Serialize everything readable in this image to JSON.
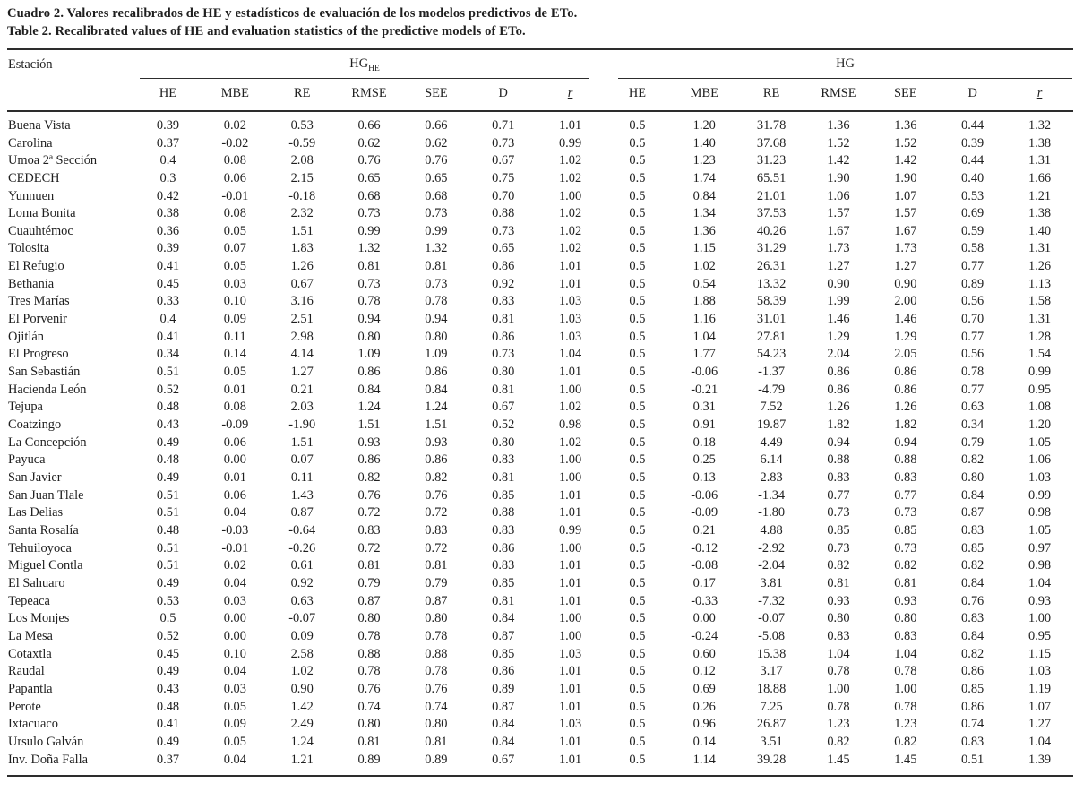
{
  "title_es": "Cuadro 2. Valores recalibrados de HE y estadísticos de evaluación de los modelos predictivos de ETo.",
  "title_en": "Table 2. Recalibrated values of HE and evaluation statistics of the predictive models of ETo.",
  "table": {
    "station_header": "Estación",
    "underlined_column": "r",
    "groups": [
      {
        "label": "HG",
        "subscript": "HE",
        "columns": [
          "HE",
          "MBE",
          "RE",
          "RMSE",
          "SEE",
          "D",
          "r"
        ]
      },
      {
        "label": "HG",
        "subscript": "",
        "columns": [
          "HE",
          "MBE",
          "RE",
          "RMSE",
          "SEE",
          "D",
          "r"
        ]
      }
    ],
    "rows": [
      {
        "station": "Buena Vista",
        "hg_he": [
          "0.39",
          "0.02",
          "0.53",
          "0.66",
          "0.66",
          "0.71",
          "1.01"
        ],
        "hg": [
          "0.5",
          "1.20",
          "31.78",
          "1.36",
          "1.36",
          "0.44",
          "1.32"
        ]
      },
      {
        "station": "Carolina",
        "hg_he": [
          "0.37",
          "-0.02",
          "-0.59",
          "0.62",
          "0.62",
          "0.73",
          "0.99"
        ],
        "hg": [
          "0.5",
          "1.40",
          "37.68",
          "1.52",
          "1.52",
          "0.39",
          "1.38"
        ]
      },
      {
        "station": "Umoa 2ª Sección",
        "hg_he": [
          "0.4",
          "0.08",
          "2.08",
          "0.76",
          "0.76",
          "0.67",
          "1.02"
        ],
        "hg": [
          "0.5",
          "1.23",
          "31.23",
          "1.42",
          "1.42",
          "0.44",
          "1.31"
        ]
      },
      {
        "station": "CEDECH",
        "hg_he": [
          "0.3",
          "0.06",
          "2.15",
          "0.65",
          "0.65",
          "0.75",
          "1.02"
        ],
        "hg": [
          "0.5",
          "1.74",
          "65.51",
          "1.90",
          "1.90",
          "0.40",
          "1.66"
        ]
      },
      {
        "station": "Yunnuen",
        "hg_he": [
          "0.42",
          "-0.01",
          "-0.18",
          "0.68",
          "0.68",
          "0.70",
          "1.00"
        ],
        "hg": [
          "0.5",
          "0.84",
          "21.01",
          "1.06",
          "1.07",
          "0.53",
          "1.21"
        ]
      },
      {
        "station": "Loma Bonita",
        "hg_he": [
          "0.38",
          "0.08",
          "2.32",
          "0.73",
          "0.73",
          "0.88",
          "1.02"
        ],
        "hg": [
          "0.5",
          "1.34",
          "37.53",
          "1.57",
          "1.57",
          "0.69",
          "1.38"
        ]
      },
      {
        "station": "Cuauhtémoc",
        "hg_he": [
          "0.36",
          "0.05",
          "1.51",
          "0.99",
          "0.99",
          "0.73",
          "1.02"
        ],
        "hg": [
          "0.5",
          "1.36",
          "40.26",
          "1.67",
          "1.67",
          "0.59",
          "1.40"
        ]
      },
      {
        "station": "Tolosita",
        "hg_he": [
          "0.39",
          "0.07",
          "1.83",
          "1.32",
          "1.32",
          "0.65",
          "1.02"
        ],
        "hg": [
          "0.5",
          "1.15",
          "31.29",
          "1.73",
          "1.73",
          "0.58",
          "1.31"
        ]
      },
      {
        "station": "El Refugio",
        "hg_he": [
          "0.41",
          "0.05",
          "1.26",
          "0.81",
          "0.81",
          "0.86",
          "1.01"
        ],
        "hg": [
          "0.5",
          "1.02",
          "26.31",
          "1.27",
          "1.27",
          "0.77",
          "1.26"
        ]
      },
      {
        "station": "Bethania",
        "hg_he": [
          "0.45",
          "0.03",
          "0.67",
          "0.73",
          "0.73",
          "0.92",
          "1.01"
        ],
        "hg": [
          "0.5",
          "0.54",
          "13.32",
          "0.90",
          "0.90",
          "0.89",
          "1.13"
        ]
      },
      {
        "station": "Tres Marías",
        "hg_he": [
          "0.33",
          "0.10",
          "3.16",
          "0.78",
          "0.78",
          "0.83",
          "1.03"
        ],
        "hg": [
          "0.5",
          "1.88",
          "58.39",
          "1.99",
          "2.00",
          "0.56",
          "1.58"
        ]
      },
      {
        "station": "El Porvenir",
        "hg_he": [
          "0.4",
          "0.09",
          "2.51",
          "0.94",
          "0.94",
          "0.81",
          "1.03"
        ],
        "hg": [
          "0.5",
          "1.16",
          "31.01",
          "1.46",
          "1.46",
          "0.70",
          "1.31"
        ]
      },
      {
        "station": "Ojitlán",
        "hg_he": [
          "0.41",
          "0.11",
          "2.98",
          "0.80",
          "0.80",
          "0.86",
          "1.03"
        ],
        "hg": [
          "0.5",
          "1.04",
          "27.81",
          "1.29",
          "1.29",
          "0.77",
          "1.28"
        ]
      },
      {
        "station": "El Progreso",
        "hg_he": [
          "0.34",
          "0.14",
          "4.14",
          "1.09",
          "1.09",
          "0.73",
          "1.04"
        ],
        "hg": [
          "0.5",
          "1.77",
          "54.23",
          "2.04",
          "2.05",
          "0.56",
          "1.54"
        ]
      },
      {
        "station": "San Sebastián",
        "hg_he": [
          "0.51",
          "0.05",
          "1.27",
          "0.86",
          "0.86",
          "0.80",
          "1.01"
        ],
        "hg": [
          "0.5",
          "-0.06",
          "-1.37",
          "0.86",
          "0.86",
          "0.78",
          "0.99"
        ]
      },
      {
        "station": "Hacienda León",
        "hg_he": [
          "0.52",
          "0.01",
          "0.21",
          "0.84",
          "0.84",
          "0.81",
          "1.00"
        ],
        "hg": [
          "0.5",
          "-0.21",
          "-4.79",
          "0.86",
          "0.86",
          "0.77",
          "0.95"
        ]
      },
      {
        "station": "Tejupa",
        "hg_he": [
          "0.48",
          "0.08",
          "2.03",
          "1.24",
          "1.24",
          "0.67",
          "1.02"
        ],
        "hg": [
          "0.5",
          "0.31",
          "7.52",
          "1.26",
          "1.26",
          "0.63",
          "1.08"
        ]
      },
      {
        "station": "Coatzingo",
        "hg_he": [
          "0.43",
          "-0.09",
          "-1.90",
          "1.51",
          "1.51",
          "0.52",
          "0.98"
        ],
        "hg": [
          "0.5",
          "0.91",
          "19.87",
          "1.82",
          "1.82",
          "0.34",
          "1.20"
        ]
      },
      {
        "station": "La Concepción",
        "hg_he": [
          "0.49",
          "0.06",
          "1.51",
          "0.93",
          "0.93",
          "0.80",
          "1.02"
        ],
        "hg": [
          "0.5",
          "0.18",
          "4.49",
          "0.94",
          "0.94",
          "0.79",
          "1.05"
        ]
      },
      {
        "station": "Payuca",
        "hg_he": [
          "0.48",
          "0.00",
          "0.07",
          "0.86",
          "0.86",
          "0.83",
          "1.00"
        ],
        "hg": [
          "0.5",
          "0.25",
          "6.14",
          "0.88",
          "0.88",
          "0.82",
          "1.06"
        ]
      },
      {
        "station": "San Javier",
        "hg_he": [
          "0.49",
          "0.01",
          "0.11",
          "0.82",
          "0.82",
          "0.81",
          "1.00"
        ],
        "hg": [
          "0.5",
          "0.13",
          "2.83",
          "0.83",
          "0.83",
          "0.80",
          "1.03"
        ]
      },
      {
        "station": "San Juan Tlale",
        "hg_he": [
          "0.51",
          "0.06",
          "1.43",
          "0.76",
          "0.76",
          "0.85",
          "1.01"
        ],
        "hg": [
          "0.5",
          "-0.06",
          "-1.34",
          "0.77",
          "0.77",
          "0.84",
          "0.99"
        ]
      },
      {
        "station": "Las Delias",
        "hg_he": [
          "0.51",
          "0.04",
          "0.87",
          "0.72",
          "0.72",
          "0.88",
          "1.01"
        ],
        "hg": [
          "0.5",
          "-0.09",
          "-1.80",
          "0.73",
          "0.73",
          "0.87",
          "0.98"
        ]
      },
      {
        "station": "Santa Rosalía",
        "hg_he": [
          "0.48",
          "-0.03",
          "-0.64",
          "0.83",
          "0.83",
          "0.83",
          "0.99"
        ],
        "hg": [
          "0.5",
          "0.21",
          "4.88",
          "0.85",
          "0.85",
          "0.83",
          "1.05"
        ]
      },
      {
        "station": "Tehuiloyoca",
        "hg_he": [
          "0.51",
          "-0.01",
          "-0.26",
          "0.72",
          "0.72",
          "0.86",
          "1.00"
        ],
        "hg": [
          "0.5",
          "-0.12",
          "-2.92",
          "0.73",
          "0.73",
          "0.85",
          "0.97"
        ]
      },
      {
        "station": "Miguel Contla",
        "hg_he": [
          "0.51",
          "0.02",
          "0.61",
          "0.81",
          "0.81",
          "0.83",
          "1.01"
        ],
        "hg": [
          "0.5",
          "-0.08",
          "-2.04",
          "0.82",
          "0.82",
          "0.82",
          "0.98"
        ]
      },
      {
        "station": "El Sahuaro",
        "hg_he": [
          "0.49",
          "0.04",
          "0.92",
          "0.79",
          "0.79",
          "0.85",
          "1.01"
        ],
        "hg": [
          "0.5",
          "0.17",
          "3.81",
          "0.81",
          "0.81",
          "0.84",
          "1.04"
        ]
      },
      {
        "station": "Tepeaca",
        "hg_he": [
          "0.53",
          "0.03",
          "0.63",
          "0.87",
          "0.87",
          "0.81",
          "1.01"
        ],
        "hg": [
          "0.5",
          "-0.33",
          "-7.32",
          "0.93",
          "0.93",
          "0.76",
          "0.93"
        ]
      },
      {
        "station": "Los Monjes",
        "hg_he": [
          "0.5",
          "0.00",
          "-0.07",
          "0.80",
          "0.80",
          "0.84",
          "1.00"
        ],
        "hg": [
          "0.5",
          "0.00",
          "-0.07",
          "0.80",
          "0.80",
          "0.83",
          "1.00"
        ]
      },
      {
        "station": "La Mesa",
        "hg_he": [
          "0.52",
          "0.00",
          "0.09",
          "0.78",
          "0.78",
          "0.87",
          "1.00"
        ],
        "hg": [
          "0.5",
          "-0.24",
          "-5.08",
          "0.83",
          "0.83",
          "0.84",
          "0.95"
        ]
      },
      {
        "station": "Cotaxtla",
        "hg_he": [
          "0.45",
          "0.10",
          "2.58",
          "0.88",
          "0.88",
          "0.85",
          "1.03"
        ],
        "hg": [
          "0.5",
          "0.60",
          "15.38",
          "1.04",
          "1.04",
          "0.82",
          "1.15"
        ]
      },
      {
        "station": "Raudal",
        "hg_he": [
          "0.49",
          "0.04",
          "1.02",
          "0.78",
          "0.78",
          "0.86",
          "1.01"
        ],
        "hg": [
          "0.5",
          "0.12",
          "3.17",
          "0.78",
          "0.78",
          "0.86",
          "1.03"
        ]
      },
      {
        "station": "Papantla",
        "hg_he": [
          "0.43",
          "0.03",
          "0.90",
          "0.76",
          "0.76",
          "0.89",
          "1.01"
        ],
        "hg": [
          "0.5",
          "0.69",
          "18.88",
          "1.00",
          "1.00",
          "0.85",
          "1.19"
        ]
      },
      {
        "station": "Perote",
        "hg_he": [
          "0.48",
          "0.05",
          "1.42",
          "0.74",
          "0.74",
          "0.87",
          "1.01"
        ],
        "hg": [
          "0.5",
          "0.26",
          "7.25",
          "0.78",
          "0.78",
          "0.86",
          "1.07"
        ]
      },
      {
        "station": "Ixtacuaco",
        "hg_he": [
          "0.41",
          "0.09",
          "2.49",
          "0.80",
          "0.80",
          "0.84",
          "1.03"
        ],
        "hg": [
          "0.5",
          "0.96",
          "26.87",
          "1.23",
          "1.23",
          "0.74",
          "1.27"
        ]
      },
      {
        "station": "Ursulo Galván",
        "hg_he": [
          "0.49",
          "0.05",
          "1.24",
          "0.81",
          "0.81",
          "0.84",
          "1.01"
        ],
        "hg": [
          "0.5",
          "0.14",
          "3.51",
          "0.82",
          "0.82",
          "0.83",
          "1.04"
        ]
      },
      {
        "station": "Inv. Doña Falla",
        "hg_he": [
          "0.37",
          "0.04",
          "1.21",
          "0.89",
          "0.89",
          "0.67",
          "1.01"
        ],
        "hg": [
          "0.5",
          "1.14",
          "39.28",
          "1.45",
          "1.45",
          "0.51",
          "1.39"
        ]
      }
    ]
  }
}
